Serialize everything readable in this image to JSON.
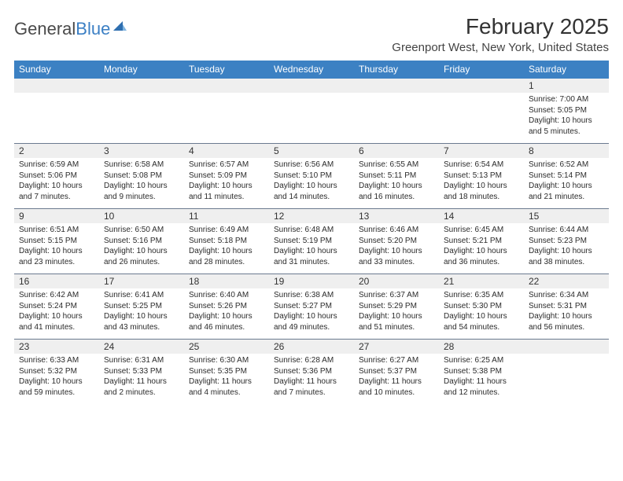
{
  "logo": {
    "text1": "General",
    "text2": "Blue"
  },
  "title": "February 2025",
  "location": "Greenport West, New York, United States",
  "weekdays": [
    "Sunday",
    "Monday",
    "Tuesday",
    "Wednesday",
    "Thursday",
    "Friday",
    "Saturday"
  ],
  "colors": {
    "header_bg": "#3c81c3",
    "header_fg": "#ffffff",
    "stripe_bg": "#efefef",
    "rule": "#6b7a8f",
    "logo_gray": "#4a4a4a",
    "logo_blue": "#3b7fc4"
  },
  "weeks": [
    [
      null,
      null,
      null,
      null,
      null,
      null,
      {
        "n": "1",
        "sr": "7:00 AM",
        "ss": "5:05 PM",
        "dl": "10 hours and 5 minutes."
      }
    ],
    [
      {
        "n": "2",
        "sr": "6:59 AM",
        "ss": "5:06 PM",
        "dl": "10 hours and 7 minutes."
      },
      {
        "n": "3",
        "sr": "6:58 AM",
        "ss": "5:08 PM",
        "dl": "10 hours and 9 minutes."
      },
      {
        "n": "4",
        "sr": "6:57 AM",
        "ss": "5:09 PM",
        "dl": "10 hours and 11 minutes."
      },
      {
        "n": "5",
        "sr": "6:56 AM",
        "ss": "5:10 PM",
        "dl": "10 hours and 14 minutes."
      },
      {
        "n": "6",
        "sr": "6:55 AM",
        "ss": "5:11 PM",
        "dl": "10 hours and 16 minutes."
      },
      {
        "n": "7",
        "sr": "6:54 AM",
        "ss": "5:13 PM",
        "dl": "10 hours and 18 minutes."
      },
      {
        "n": "8",
        "sr": "6:52 AM",
        "ss": "5:14 PM",
        "dl": "10 hours and 21 minutes."
      }
    ],
    [
      {
        "n": "9",
        "sr": "6:51 AM",
        "ss": "5:15 PM",
        "dl": "10 hours and 23 minutes."
      },
      {
        "n": "10",
        "sr": "6:50 AM",
        "ss": "5:16 PM",
        "dl": "10 hours and 26 minutes."
      },
      {
        "n": "11",
        "sr": "6:49 AM",
        "ss": "5:18 PM",
        "dl": "10 hours and 28 minutes."
      },
      {
        "n": "12",
        "sr": "6:48 AM",
        "ss": "5:19 PM",
        "dl": "10 hours and 31 minutes."
      },
      {
        "n": "13",
        "sr": "6:46 AM",
        "ss": "5:20 PM",
        "dl": "10 hours and 33 minutes."
      },
      {
        "n": "14",
        "sr": "6:45 AM",
        "ss": "5:21 PM",
        "dl": "10 hours and 36 minutes."
      },
      {
        "n": "15",
        "sr": "6:44 AM",
        "ss": "5:23 PM",
        "dl": "10 hours and 38 minutes."
      }
    ],
    [
      {
        "n": "16",
        "sr": "6:42 AM",
        "ss": "5:24 PM",
        "dl": "10 hours and 41 minutes."
      },
      {
        "n": "17",
        "sr": "6:41 AM",
        "ss": "5:25 PM",
        "dl": "10 hours and 43 minutes."
      },
      {
        "n": "18",
        "sr": "6:40 AM",
        "ss": "5:26 PM",
        "dl": "10 hours and 46 minutes."
      },
      {
        "n": "19",
        "sr": "6:38 AM",
        "ss": "5:27 PM",
        "dl": "10 hours and 49 minutes."
      },
      {
        "n": "20",
        "sr": "6:37 AM",
        "ss": "5:29 PM",
        "dl": "10 hours and 51 minutes."
      },
      {
        "n": "21",
        "sr": "6:35 AM",
        "ss": "5:30 PM",
        "dl": "10 hours and 54 minutes."
      },
      {
        "n": "22",
        "sr": "6:34 AM",
        "ss": "5:31 PM",
        "dl": "10 hours and 56 minutes."
      }
    ],
    [
      {
        "n": "23",
        "sr": "6:33 AM",
        "ss": "5:32 PM",
        "dl": "10 hours and 59 minutes."
      },
      {
        "n": "24",
        "sr": "6:31 AM",
        "ss": "5:33 PM",
        "dl": "11 hours and 2 minutes."
      },
      {
        "n": "25",
        "sr": "6:30 AM",
        "ss": "5:35 PM",
        "dl": "11 hours and 4 minutes."
      },
      {
        "n": "26",
        "sr": "6:28 AM",
        "ss": "5:36 PM",
        "dl": "11 hours and 7 minutes."
      },
      {
        "n": "27",
        "sr": "6:27 AM",
        "ss": "5:37 PM",
        "dl": "11 hours and 10 minutes."
      },
      {
        "n": "28",
        "sr": "6:25 AM",
        "ss": "5:38 PM",
        "dl": "11 hours and 12 minutes."
      },
      null
    ]
  ],
  "labels": {
    "sunrise": "Sunrise: ",
    "sunset": "Sunset: ",
    "daylight": "Daylight: "
  }
}
